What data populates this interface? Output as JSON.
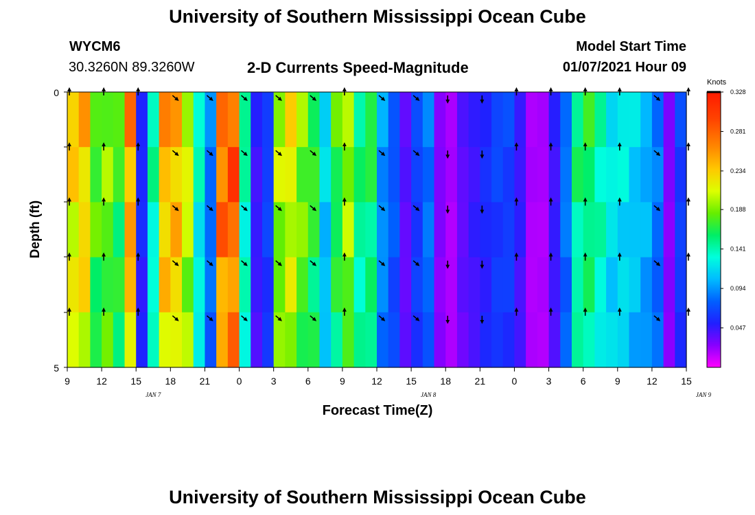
{
  "header": {
    "title": "University of Southern Mississippi Ocean Cube",
    "station": "WYCM6",
    "location": "30.3260N 89.3260W",
    "chart_title": "2-D Currents Speed-Magnitude",
    "model_start_label": "Model Start Time",
    "model_start_value": "01/07/2021 Hour 09"
  },
  "footer": {
    "title": "University of Southern Mississippi Ocean Cube"
  },
  "colors": {
    "colormap": [
      "#ff00ff",
      "#8800ff",
      "#2020ff",
      "#0060ff",
      "#00bbff",
      "#00ffdd",
      "#00ee66",
      "#66ee00",
      "#ddff00",
      "#ffc800",
      "#ff8800",
      "#ff4400",
      "#ff1a00"
    ]
  },
  "chart_data": {
    "type": "heatmap",
    "title": "2-D Currents Speed-Magnitude",
    "xlabel": "Forecast Time(Z)",
    "ylabel": "Depth (ft)",
    "ylim": [
      0,
      5
    ],
    "y_tick_labels": [
      "0",
      "5"
    ],
    "x_tick_labels": [
      "9",
      "12",
      "15",
      "18",
      "21",
      "0",
      "3",
      "6",
      "9",
      "12",
      "15",
      "18",
      "21",
      "0",
      "3",
      "6",
      "9",
      "12",
      "15"
    ],
    "date_labels": [
      {
        "text": "JAN 7",
        "hour_index": 7.5
      },
      {
        "text": "JAN 8",
        "hour_index": 31.5
      },
      {
        "text": "JAN 9",
        "hour_index": 55.5
      }
    ],
    "colorbar": {
      "unit": "Knots",
      "min": 0.0,
      "max": 0.328,
      "tick_labels": [
        "0.328",
        "0.281",
        "0.234",
        "0.188",
        "0.141",
        "0.094",
        "0.047"
      ],
      "tick_values": [
        0.328,
        0.281,
        0.234,
        0.188,
        0.141,
        0.094,
        0.047
      ]
    },
    "hours": 54,
    "depth_layers": 5,
    "speed_profile": [
      0.24,
      0.25,
      0.19,
      0.2,
      0.18,
      0.27,
      0.06,
      0.15,
      0.26,
      0.26,
      0.22,
      0.14,
      0.09,
      0.29,
      0.3,
      0.15,
      0.05,
      0.07,
      0.21,
      0.23,
      0.2,
      0.18,
      0.12,
      0.18,
      0.21,
      0.16,
      0.17,
      0.1,
      0.08,
      0.04,
      0.07,
      0.09,
      0.03,
      0.02,
      0.04,
      0.05,
      0.06,
      0.07,
      0.07,
      0.05,
      0.02,
      0.02,
      0.05,
      0.09,
      0.16,
      0.17,
      0.15,
      0.13,
      0.13,
      0.12,
      0.11,
      0.09,
      0.03,
      0.07
    ],
    "depth_factor": [
      1.0,
      0.98,
      0.95,
      0.92,
      0.9
    ],
    "arrow_directions": {
      "down_right": [
        12,
        15,
        18,
        21,
        27,
        30
      ],
      "up": [
        3,
        39,
        42,
        45
      ],
      "down": [
        33,
        36
      ]
    }
  }
}
